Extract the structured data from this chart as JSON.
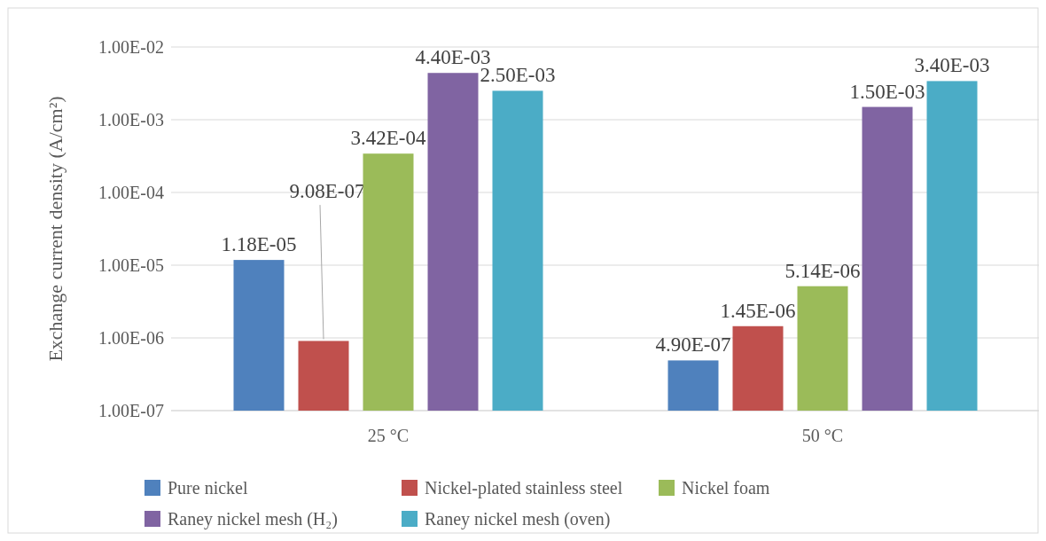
{
  "chart_data": {
    "type": "bar",
    "ylabel": "Exchange current density (A/cm²)",
    "categories": [
      "25 °C",
      "50 °C"
    ],
    "log": true,
    "ylim": [
      1e-07,
      0.01
    ],
    "yticks": [
      {
        "value": 1e-07,
        "label": "1.00E-07"
      },
      {
        "value": 1e-06,
        "label": "1.00E-06"
      },
      {
        "value": 1e-05,
        "label": "1.00E-05"
      },
      {
        "value": 0.0001,
        "label": "1.00E-04"
      },
      {
        "value": 0.001,
        "label": "1.00E-03"
      },
      {
        "value": 0.01,
        "label": "1.00E-02"
      }
    ],
    "grid": "y",
    "legend": "bottom",
    "series": [
      {
        "name": "Pure nickel",
        "color": "#4f81bd",
        "values": [
          1.18e-05,
          4.9e-07
        ],
        "value_labels": [
          "1.18E-05",
          "4.90E-07"
        ]
      },
      {
        "name": "Nickel-plated stainless steel",
        "color": "#c0504d",
        "values": [
          9.08e-07,
          1.45e-06
        ],
        "value_labels": [
          "9.08E-07",
          "1.45E-06"
        ]
      },
      {
        "name": "Nickel foam",
        "color": "#9bbb59",
        "values": [
          0.000342,
          5.14e-06
        ],
        "value_labels": [
          "3.42E-04",
          "5.14E-06"
        ]
      },
      {
        "name": "Raney nickel mesh (H₂)",
        "color": "#8064a2",
        "values": [
          0.0044,
          0.0015
        ],
        "value_labels": [
          "4.40E-03",
          "1.50E-03"
        ]
      },
      {
        "name": "Raney nickel mesh (oven)",
        "color": "#4bacc6",
        "values": [
          0.0025,
          0.0034
        ],
        "value_labels": [
          "2.50E-03",
          "3.40E-03"
        ]
      }
    ]
  }
}
